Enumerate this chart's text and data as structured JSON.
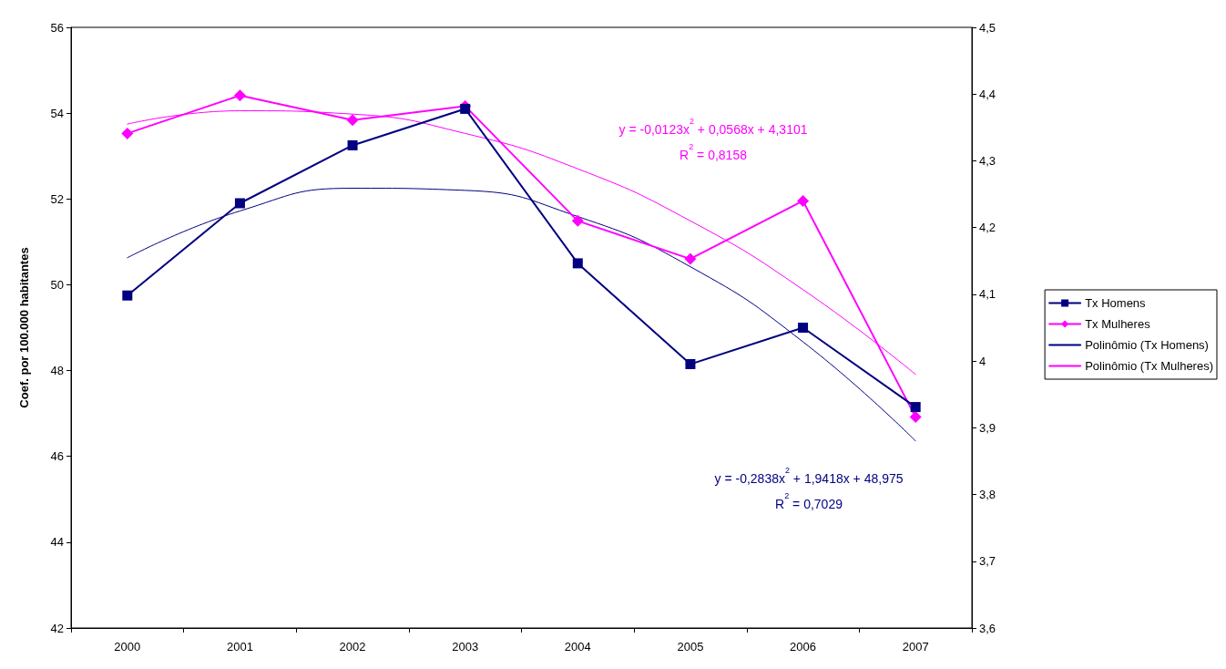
{
  "chart_data": {
    "type": "line",
    "ylabel": "Coef. por 100.000 habitantes",
    "categories": [
      "2000",
      "2001",
      "2002",
      "2003",
      "2004",
      "2005",
      "2006",
      "2007"
    ],
    "series": [
      {
        "name": "Tx Homens",
        "color": "#000080",
        "marker": "square",
        "values": [
          49.75,
          51.9,
          53.25,
          54.1,
          50.5,
          48.15,
          49.0,
          47.15
        ]
      },
      {
        "name": "Tx Mulheres",
        "color": "#ff00ff",
        "marker": "diamond",
        "axis": "y2",
        "values": [
          4.341,
          4.398,
          4.361,
          4.382,
          4.21,
          4.153,
          4.24,
          3.916
        ]
      },
      {
        "name": "Polinômio (Tx Homens)",
        "color": "#000080",
        "marker": "none",
        "values": [
          50.63,
          51.72,
          52.25,
          52.2,
          51.59,
          50.42,
          48.67,
          46.36
        ]
      },
      {
        "name": "Polinômio (Tx Mulheres)",
        "color": "#ff00ff",
        "marker": "none",
        "axis": "y2",
        "values": [
          4.355,
          4.375,
          4.37,
          4.341,
          4.288,
          4.21,
          4.107,
          3.98
        ]
      }
    ],
    "ylim": [
      42,
      56
    ],
    "yticks": [
      42,
      44,
      46,
      48,
      50,
      52,
      54,
      56
    ],
    "y2lim": [
      3.6,
      4.5
    ],
    "y2ticks": [
      {
        "value": 3.6,
        "label": "3,6"
      },
      {
        "value": 3.7,
        "label": "3,7"
      },
      {
        "value": 3.8,
        "label": "3,8"
      },
      {
        "value": 3.9,
        "label": "3,9"
      },
      {
        "value": 4,
        "label": "4"
      },
      {
        "value": 4.1,
        "label": "4,1"
      },
      {
        "value": 4.2,
        "label": "4,2"
      },
      {
        "value": 4.3,
        "label": "4,3"
      },
      {
        "value": 4.4,
        "label": "4,4"
      },
      {
        "value": 4.5,
        "label": "4,5"
      }
    ],
    "annotations": [
      "y = -0,0123x$^{2}$ + 0,0568x + 4,3101\nR$^{2}$ = 0,8158",
      "y = -0,2838x$^{2}$ + 1,9418x + 48,975\nR$^{2}$ = 0,7029"
    ],
    "grid": false,
    "legend": "right"
  }
}
